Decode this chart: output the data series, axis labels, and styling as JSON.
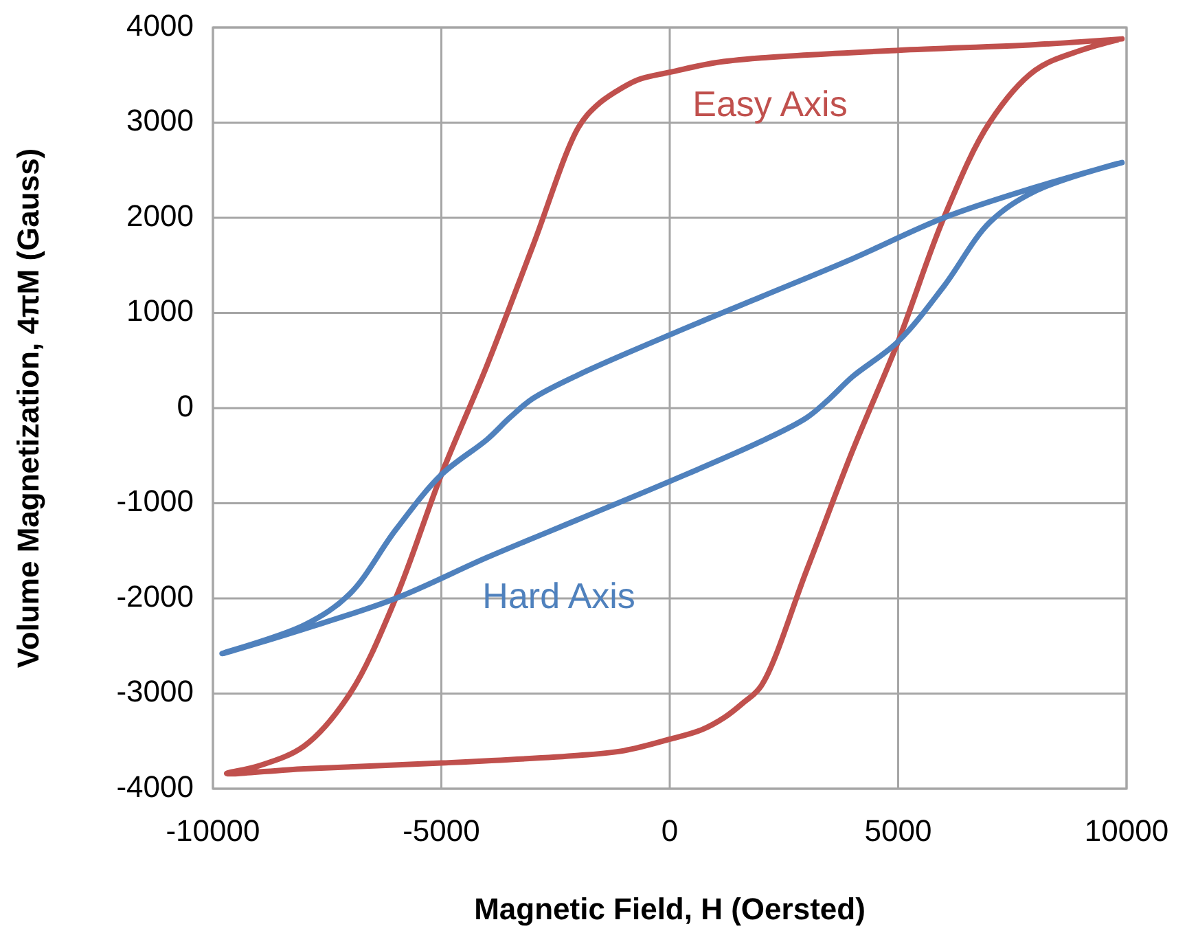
{
  "chart_data": {
    "type": "line",
    "xlabel": "Magnetic Field, H (Oersted)",
    "ylabel": "Volume Magnetization, 4πM (Gauss)",
    "xlim": [
      -10000,
      10000
    ],
    "ylim": [
      -4000,
      4000
    ],
    "xticks": [
      -10000,
      -5000,
      0,
      5000,
      10000
    ],
    "yticks": [
      -4000,
      -3000,
      -2000,
      -1000,
      0,
      1000,
      2000,
      3000,
      4000
    ],
    "grid": true,
    "legend": false,
    "marker": "none",
    "line_style": "solid",
    "series": [
      {
        "name": "Easy Axis",
        "color": "#c0504d",
        "x": [
          9900,
          8000,
          5000,
          2000,
          1000,
          0,
          -700,
          -1200,
          -1600,
          -2000,
          -3000,
          -4000,
          -5000,
          -6000,
          -7000,
          -8000,
          -9000,
          -9700,
          -8000,
          -5000,
          -2000,
          -1000,
          0,
          700,
          1200,
          1600,
          2000,
          3000,
          4000,
          5000,
          6000,
          7000,
          8000,
          9000,
          9800
        ],
        "values": [
          3880,
          3820,
          3760,
          3680,
          3630,
          3530,
          3450,
          3320,
          3180,
          2950,
          1700,
          450,
          -700,
          -2000,
          -3000,
          -3550,
          -3760,
          -3840,
          -3790,
          -3730,
          -3650,
          -3600,
          -3480,
          -3380,
          -3250,
          -3100,
          -2920,
          -1700,
          -450,
          700,
          2000,
          3000,
          3550,
          3760,
          3870
        ]
      },
      {
        "name": "Hard Axis",
        "color": "#4f81bd",
        "x": [
          9900,
          8000,
          6000,
          4000,
          2000,
          0,
          -2000,
          -3000,
          -3500,
          -4000,
          -5000,
          -6000,
          -7000,
          -8000,
          -9800,
          -8000,
          -6000,
          -4000,
          -2000,
          0,
          2000,
          3000,
          3500,
          4000,
          5000,
          6000,
          7000,
          8000,
          9800
        ],
        "values": [
          2580,
          2320,
          2000,
          1570,
          1170,
          770,
          350,
          100,
          -100,
          -330,
          -700,
          -1280,
          -1950,
          -2280,
          -2580,
          -2320,
          -2000,
          -1570,
          -1170,
          -770,
          -350,
          -100,
          100,
          330,
          700,
          1280,
          1950,
          2280,
          2570
        ]
      }
    ]
  }
}
